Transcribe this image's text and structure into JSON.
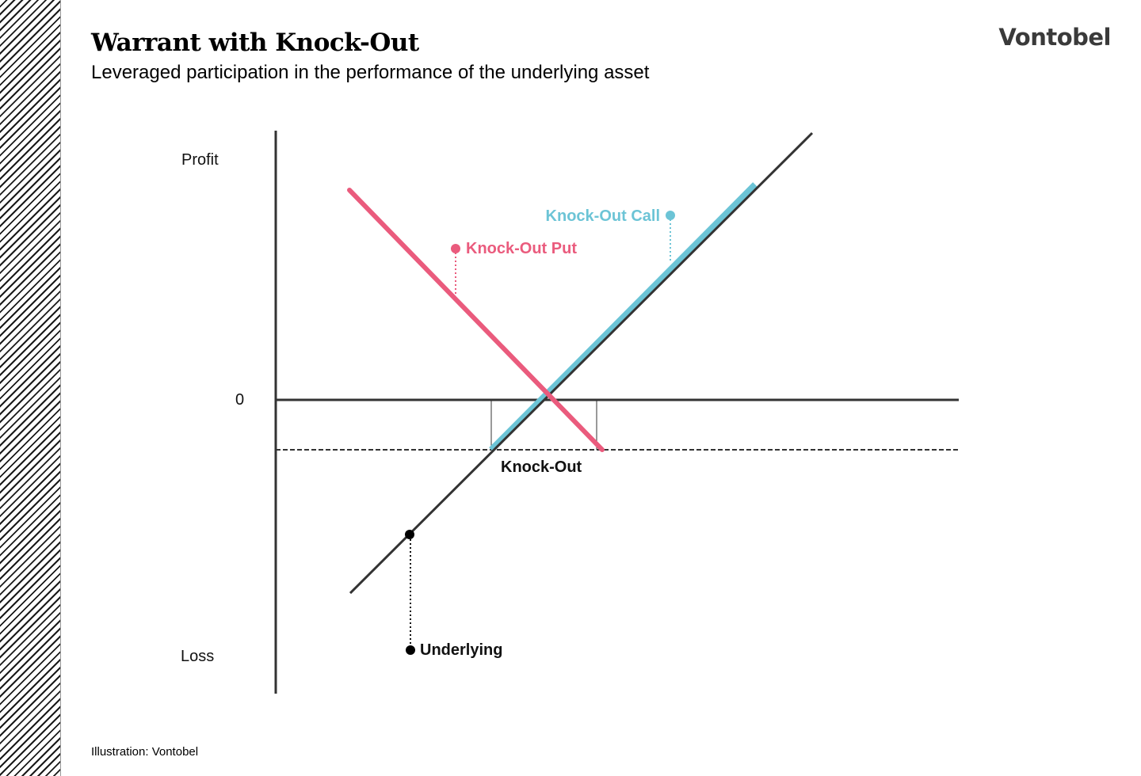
{
  "header": {
    "title": "Warrant with Knock-Out",
    "subtitle": "Leveraged participation in the performance of the underlying asset",
    "brand": "Vontobel"
  },
  "footer": {
    "credit": "Illustration: Vontobel"
  },
  "axis": {
    "profit_label": "Profit",
    "zero_label": "0",
    "loss_label": "Loss"
  },
  "labels": {
    "knock_out_call": "Knock-Out Call",
    "knock_out_put": "Knock-Out Put",
    "knock_out": "Knock-Out",
    "underlying": "Underlying"
  },
  "colors": {
    "call": "#6cc4d6",
    "put": "#ea5b7d",
    "underlying": "#333333",
    "axis": "#333333"
  }
}
